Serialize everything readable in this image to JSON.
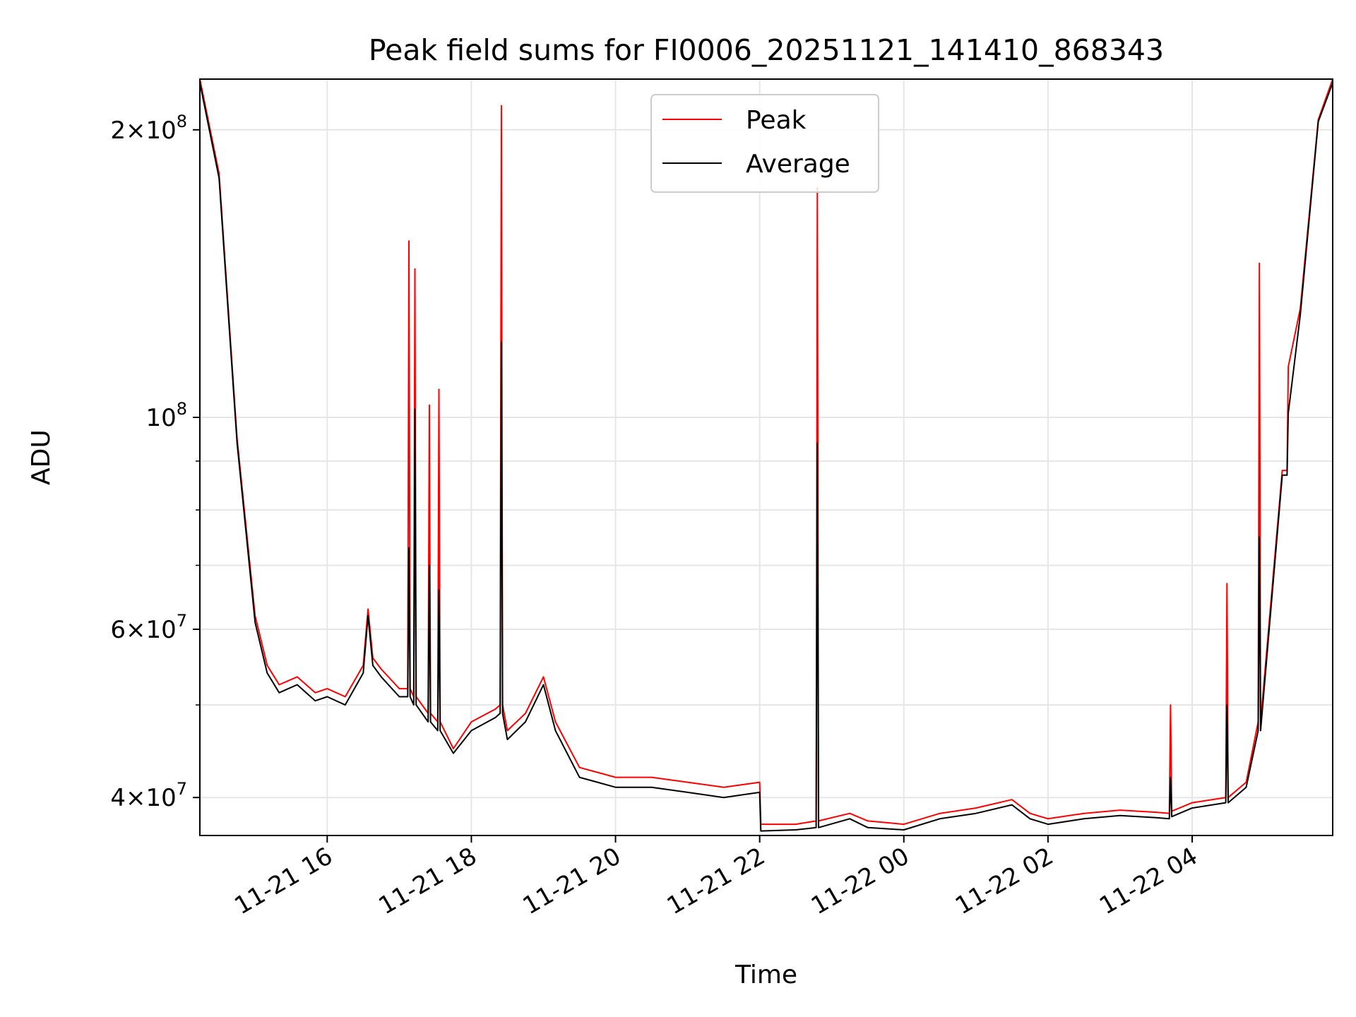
{
  "chart_data": {
    "type": "line",
    "title": "Peak field sums for FI0006_20251121_141410_868343",
    "xlabel": "Time",
    "ylabel": "ADU",
    "yscale": "log",
    "xlim": [
      "2025-11-21 14:14",
      "2025-11-22 05:57"
    ],
    "ylim": [
      36500000,
      226000000
    ],
    "x_ticks": [
      {
        "value": "2025-11-21 16:00",
        "label": "11-21 16"
      },
      {
        "value": "2025-11-21 18:00",
        "label": "11-21 18"
      },
      {
        "value": "2025-11-21 20:00",
        "label": "11-21 20"
      },
      {
        "value": "2025-11-21 22:00",
        "label": "11-21 22"
      },
      {
        "value": "2025-11-22 00:00",
        "label": "11-22 00"
      },
      {
        "value": "2025-11-22 02:00",
        "label": "11-22 02"
      },
      {
        "value": "2025-11-22 04:00",
        "label": "11-22 04"
      }
    ],
    "y_ticks": [
      {
        "value": 40000000,
        "mantissa": "4",
        "exp": "7"
      },
      {
        "value": 60000000,
        "mantissa": "6",
        "exp": "7"
      },
      {
        "value": 100000000,
        "mantissa": "",
        "exp": "8"
      },
      {
        "value": 200000000,
        "mantissa": "2",
        "exp": "8"
      }
    ],
    "y_minor_ticks": [
      50000000,
      70000000,
      80000000,
      90000000
    ],
    "grid": true,
    "legend": {
      "position": "top-center"
    },
    "colors": {
      "peak": "#ff0000",
      "average": "#000000"
    },
    "series": [
      {
        "name": "Peak",
        "color": "#ff0000",
        "x": [
          "2025-11-21 14:14",
          "2025-11-21 14:30",
          "2025-11-21 14:45",
          "2025-11-21 15:00",
          "2025-11-21 15:10",
          "2025-11-21 15:20",
          "2025-11-21 15:35",
          "2025-11-21 15:50",
          "2025-11-21 16:00",
          "2025-11-21 16:15",
          "2025-11-21 16:30",
          "2025-11-21 16:34",
          "2025-11-21 16:38",
          "2025-11-21 16:45",
          "2025-11-21 17:00",
          "2025-11-21 17:07",
          "2025-11-21 17:08",
          "2025-11-21 17:09",
          "2025-11-21 17:12",
          "2025-11-21 17:13",
          "2025-11-21 17:14",
          "2025-11-21 17:24",
          "2025-11-21 17:25",
          "2025-11-21 17:26",
          "2025-11-21 17:32",
          "2025-11-21 17:33",
          "2025-11-21 17:34",
          "2025-11-21 17:45",
          "2025-11-21 18:00",
          "2025-11-21 18:20",
          "2025-11-21 18:24",
          "2025-11-21 18:25",
          "2025-11-21 18:26",
          "2025-11-21 18:30",
          "2025-11-21 18:45",
          "2025-11-21 19:00",
          "2025-11-21 19:10",
          "2025-11-21 19:30",
          "2025-11-21 19:45",
          "2025-11-21 20:00",
          "2025-11-21 20:30",
          "2025-11-21 21:00",
          "2025-11-21 21:30",
          "2025-11-21 22:00",
          "2025-11-21 22:01",
          "2025-11-21 22:30",
          "2025-11-21 22:47",
          "2025-11-21 22:48",
          "2025-11-21 22:49",
          "2025-11-21 23:15",
          "2025-11-21 23:30",
          "2025-11-22 00:00",
          "2025-11-22 00:30",
          "2025-11-22 01:00",
          "2025-11-22 01:30",
          "2025-11-22 01:45",
          "2025-11-22 02:00",
          "2025-11-22 02:30",
          "2025-11-22 03:00",
          "2025-11-22 03:30",
          "2025-11-22 03:41",
          "2025-11-22 03:42",
          "2025-11-22 03:43",
          "2025-11-22 04:00",
          "2025-11-22 04:28",
          "2025-11-22 04:29",
          "2025-11-22 04:30",
          "2025-11-22 04:45",
          "2025-11-22 04:55",
          "2025-11-22 04:56",
          "2025-11-22 04:57",
          "2025-11-22 05:15",
          "2025-11-22 05:19",
          "2025-11-22 05:20",
          "2025-11-22 05:30",
          "2025-11-22 05:45",
          "2025-11-22 05:57"
        ],
        "y": [
          226000000,
          180000000,
          95000000,
          62000000,
          55000000,
          52500000,
          53500000,
          51500000,
          52000000,
          51000000,
          55000000,
          63000000,
          56000000,
          54500000,
          52000000,
          52000000,
          153000000,
          52000000,
          51000000,
          143000000,
          51000000,
          49000000,
          103000000,
          49000000,
          48000000,
          107000000,
          48000000,
          45000000,
          48000000,
          49500000,
          50000000,
          212000000,
          50000000,
          47000000,
          49000000,
          53500000,
          48000000,
          43000000,
          42500000,
          42000000,
          42000000,
          41500000,
          41000000,
          41500000,
          37500000,
          37500000,
          37800000,
          174000000,
          37800000,
          38500000,
          37800000,
          37500000,
          38500000,
          39000000,
          39800000,
          38500000,
          38000000,
          38500000,
          38800000,
          38600000,
          38500000,
          50000000,
          38700000,
          39500000,
          40000000,
          67000000,
          40000000,
          41500000,
          48000000,
          145000000,
          48000000,
          88000000,
          88000000,
          113000000,
          130000000,
          205000000,
          226000000
        ]
      },
      {
        "name": "Average",
        "color": "#000000",
        "x": [
          "2025-11-21 14:14",
          "2025-11-21 14:30",
          "2025-11-21 14:45",
          "2025-11-21 15:00",
          "2025-11-21 15:10",
          "2025-11-21 15:20",
          "2025-11-21 15:35",
          "2025-11-21 15:50",
          "2025-11-21 16:00",
          "2025-11-21 16:15",
          "2025-11-21 16:30",
          "2025-11-21 16:34",
          "2025-11-21 16:38",
          "2025-11-21 16:45",
          "2025-11-21 17:00",
          "2025-11-21 17:07",
          "2025-11-21 17:08",
          "2025-11-21 17:09",
          "2025-11-21 17:12",
          "2025-11-21 17:13",
          "2025-11-21 17:14",
          "2025-11-21 17:24",
          "2025-11-21 17:25",
          "2025-11-21 17:26",
          "2025-11-21 17:32",
          "2025-11-21 17:33",
          "2025-11-21 17:34",
          "2025-11-21 17:45",
          "2025-11-21 18:00",
          "2025-11-21 18:20",
          "2025-11-21 18:24",
          "2025-11-21 18:25",
          "2025-11-21 18:26",
          "2025-11-21 18:30",
          "2025-11-21 18:45",
          "2025-11-21 19:00",
          "2025-11-21 19:10",
          "2025-11-21 19:30",
          "2025-11-21 19:45",
          "2025-11-21 20:00",
          "2025-11-21 20:30",
          "2025-11-21 21:00",
          "2025-11-21 21:30",
          "2025-11-21 22:00",
          "2025-11-21 22:01",
          "2025-11-21 22:30",
          "2025-11-21 22:47",
          "2025-11-21 22:48",
          "2025-11-21 22:49",
          "2025-11-21 23:15",
          "2025-11-21 23:30",
          "2025-11-22 00:00",
          "2025-11-22 00:30",
          "2025-11-22 01:00",
          "2025-11-22 01:30",
          "2025-11-22 01:45",
          "2025-11-22 02:00",
          "2025-11-22 02:30",
          "2025-11-22 03:00",
          "2025-11-22 03:30",
          "2025-11-22 03:41",
          "2025-11-22 03:42",
          "2025-11-22 03:43",
          "2025-11-22 04:00",
          "2025-11-22 04:28",
          "2025-11-22 04:29",
          "2025-11-22 04:30",
          "2025-11-22 04:45",
          "2025-11-22 04:55",
          "2025-11-22 04:56",
          "2025-11-22 04:57",
          "2025-11-22 05:15",
          "2025-11-22 05:19",
          "2025-11-22 05:20",
          "2025-11-22 05:30",
          "2025-11-22 05:45",
          "2025-11-22 05:57"
        ],
        "y": [
          224000000,
          178000000,
          94000000,
          61000000,
          54000000,
          51500000,
          52500000,
          50500000,
          51000000,
          50000000,
          54000000,
          62000000,
          55000000,
          53500000,
          51000000,
          51000000,
          73000000,
          51000000,
          50000000,
          102000000,
          50000000,
          48000000,
          70000000,
          48000000,
          47000000,
          66000000,
          47000000,
          44500000,
          47000000,
          48500000,
          49000000,
          120000000,
          49000000,
          46000000,
          48000000,
          52500000,
          47000000,
          42000000,
          41500000,
          41000000,
          41000000,
          40500000,
          40000000,
          40500000,
          36900000,
          37000000,
          37200000,
          94000000,
          37200000,
          38000000,
          37200000,
          37000000,
          38000000,
          38500000,
          39300000,
          38000000,
          37500000,
          38000000,
          38300000,
          38100000,
          38000000,
          42000000,
          38200000,
          39000000,
          39500000,
          50000000,
          39500000,
          41000000,
          47000000,
          75000000,
          47000000,
          87000000,
          87000000,
          101000000,
          128000000,
          204000000,
          224000000
        ]
      }
    ]
  }
}
